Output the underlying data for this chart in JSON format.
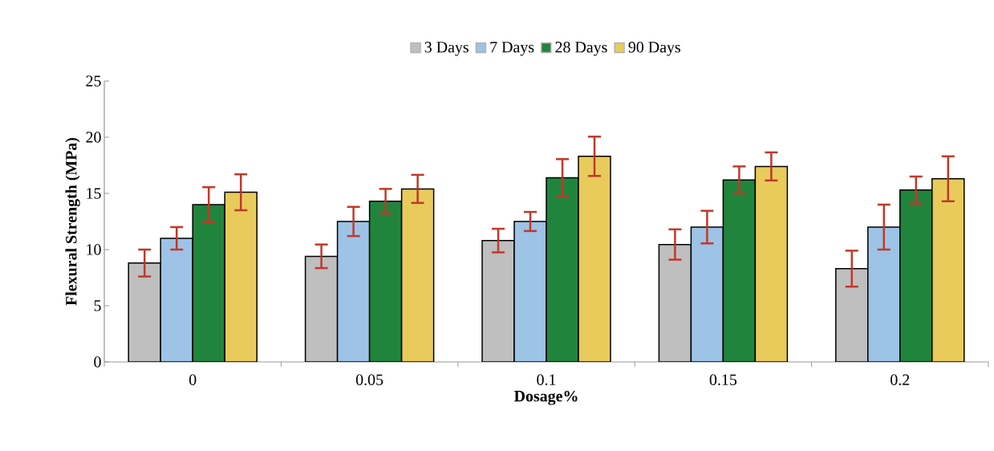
{
  "chart_data": {
    "type": "bar",
    "xlabel": "Dosage%",
    "ylabel": "Flexural Strength (MPa)",
    "categories": [
      "0",
      "0.05",
      "0.1",
      "0.15",
      "0.2"
    ],
    "series": [
      {
        "name": "3 Days",
        "color": "#bfbfbf",
        "values": [
          8.8,
          9.4,
          10.8,
          10.45,
          8.3
        ],
        "errors": [
          1.2,
          1.05,
          1.05,
          1.35,
          1.6
        ]
      },
      {
        "name": "7 Days",
        "color": "#9dc3e6",
        "values": [
          11,
          12.5,
          12.5,
          12,
          12
        ],
        "errors": [
          1.0,
          1.3,
          0.85,
          1.45,
          2.0
        ]
      },
      {
        "name": "28 Days",
        "color": "#21843d",
        "values": [
          14,
          14.3,
          16.4,
          16.2,
          15.3
        ],
        "errors": [
          1.55,
          1.1,
          1.65,
          1.2,
          1.2
        ]
      },
      {
        "name": "90 Days",
        "color": "#e9cb5c",
        "values": [
          15.1,
          15.4,
          18.3,
          17.4,
          16.3
        ],
        "errors": [
          1.6,
          1.25,
          1.75,
          1.25,
          2.0
        ]
      }
    ],
    "ylim": [
      0,
      25
    ],
    "yticks": [
      0,
      5,
      10,
      15,
      20,
      25
    ],
    "grid": false,
    "legend": "top"
  }
}
